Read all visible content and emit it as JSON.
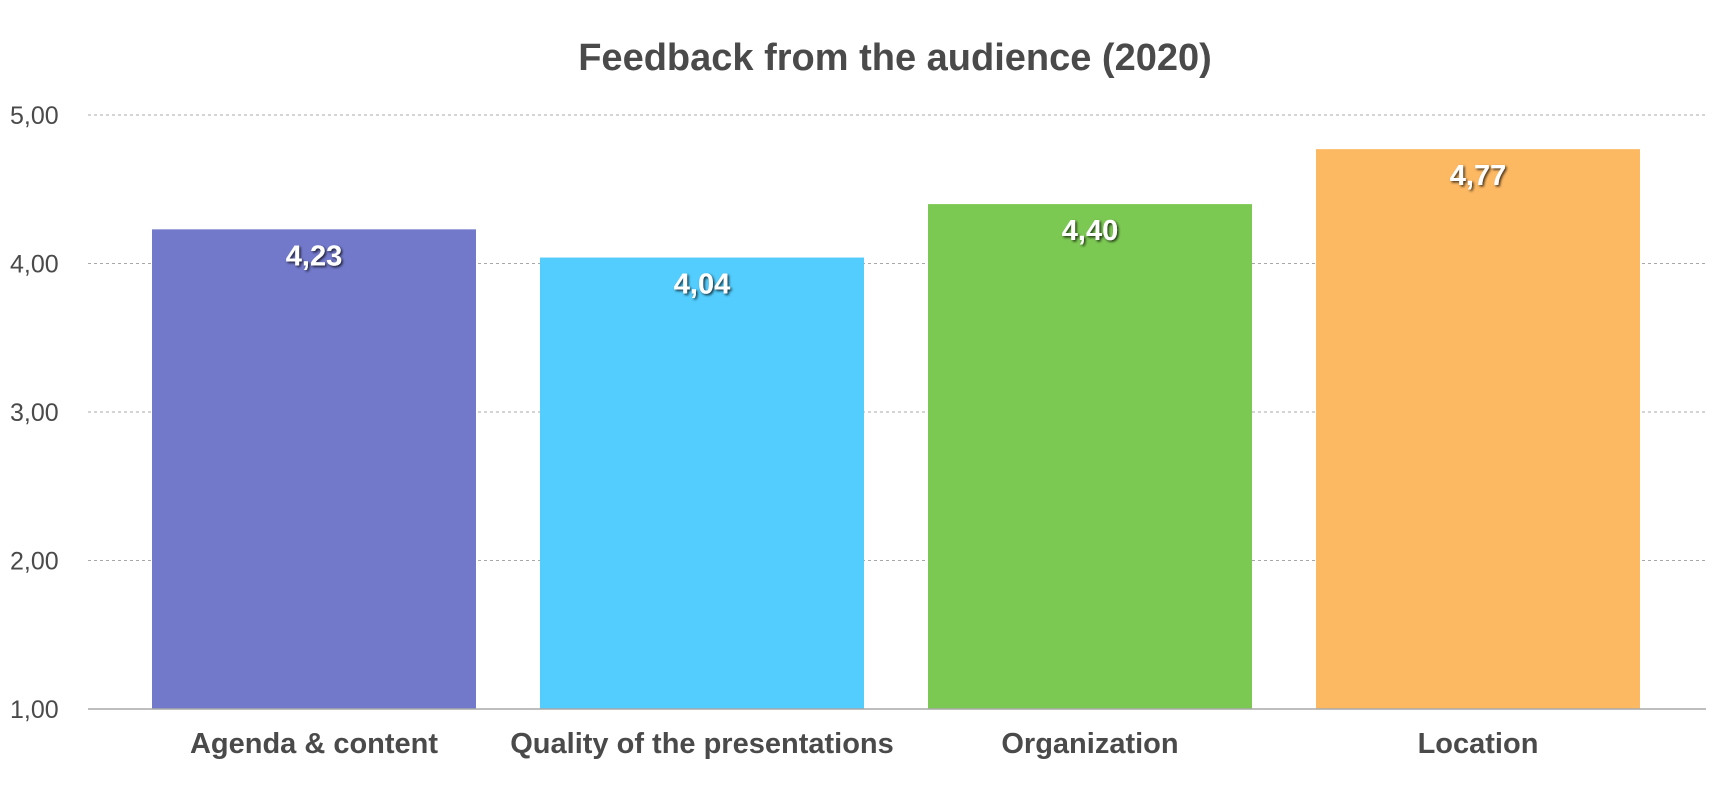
{
  "chart_data": {
    "type": "bar",
    "title": "Feedback from the audience (2020)",
    "xlabel": "",
    "ylabel": "",
    "categories": [
      "Agenda & content",
      "Quality of the presentations",
      "Organization",
      "Location"
    ],
    "values": [
      4.23,
      4.04,
      4.4,
      4.77
    ],
    "data_labels": [
      "4,23",
      "4,04",
      "4,40",
      "4,77"
    ],
    "colors": [
      "#7279ca",
      "#52cdfe",
      "#7bc952",
      "#fdb862"
    ],
    "ylim": [
      1,
      5
    ],
    "yticks": [
      1,
      2,
      3,
      4,
      5
    ],
    "ytick_labels": [
      "1,00",
      "2,00",
      "3,00",
      "4,00",
      "5,00"
    ],
    "grid": true,
    "grid_color": "#a8a8a8",
    "text_color": "#4a4a4a",
    "legend": "none"
  }
}
